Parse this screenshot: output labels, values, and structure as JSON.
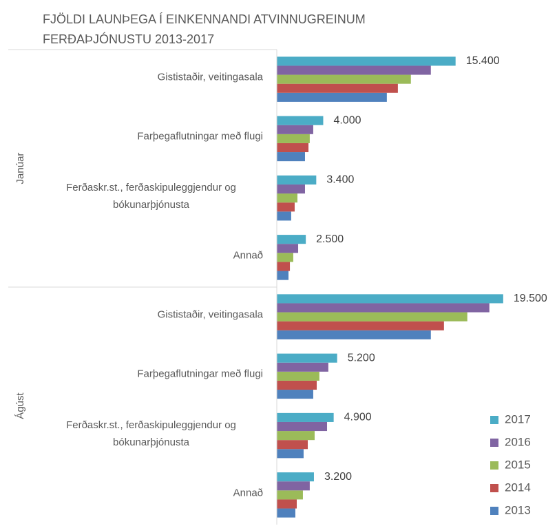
{
  "chart_data": {
    "type": "bar",
    "orientation": "horizontal",
    "title": "FJÖLDI LAUNÞEGA Í EINKENNANDI ATVINNUGREINUM FERÐAÞJÓNUSTU 2013-2017",
    "groups": [
      {
        "name": "Janúar",
        "categories": [
          "Gististaðir, veitingasala",
          "Farþegaflutningar með flugi",
          "Ferðaskr.st., ferðaskipuleggjendur og bókunarþjónusta",
          "Annað"
        ]
      },
      {
        "name": "Ágúst",
        "categories": [
          "Gististaðir, veitingasala",
          "Farþegaflutningar með flugi",
          "Ferðaskr.st., ferðaskipuleggjendur og bókunarþjónusta",
          "Annað"
        ]
      }
    ],
    "series": [
      {
        "name": "2013",
        "color": "#4f81bd",
        "values": [
          [
            9480,
            2430,
            1240,
            1010
          ],
          [
            13270,
            3140,
            2310,
            1600
          ]
        ]
      },
      {
        "name": "2014",
        "color": "#c0504d",
        "values": [
          [
            10430,
            2730,
            1540,
            1130
          ],
          [
            14400,
            3440,
            2670,
            1720
          ]
        ]
      },
      {
        "name": "2015",
        "color": "#9bbb59",
        "values": [
          [
            11550,
            2840,
            1780,
            1420
          ],
          [
            16410,
            3670,
            3260,
            2250
          ]
        ]
      },
      {
        "name": "2016",
        "color": "#8064a2",
        "values": [
          [
            13270,
            3140,
            2430,
            1840
          ],
          [
            18310,
            4440,
            4330,
            2840
          ]
        ]
      },
      {
        "name": "2017",
        "color": "#4bacc6",
        "values": [
          [
            15400,
            4000,
            3400,
            2500
          ],
          [
            19500,
            5200,
            4900,
            3200
          ]
        ],
        "value_labels": [
          [
            "15.400",
            "4.000",
            "3.400",
            "2.500"
          ],
          [
            "19.500",
            "5.200",
            "4.900",
            "3.200"
          ]
        ]
      }
    ],
    "xlim": [
      0,
      22000
    ],
    "legend": "bottom-right"
  }
}
